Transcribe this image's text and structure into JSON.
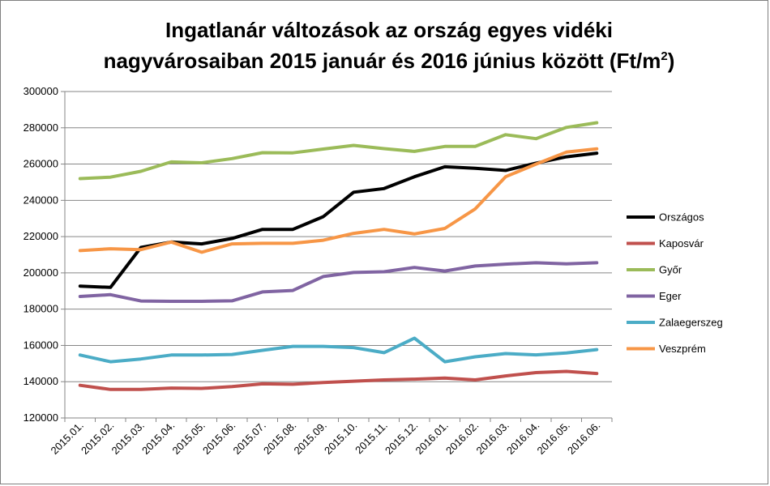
{
  "chart_data": {
    "type": "line",
    "title_line1": "Ingatlanár változások az ország egyes vidéki",
    "title_line2": "nagyvárosaiban 2015 január és 2016 június között (Ft/m",
    "title_sup": "2",
    "title_end": ")",
    "categories": [
      "2015.01.",
      "2015.02.",
      "2015.03.",
      "2015.04.",
      "2015.05.",
      "2015.06.",
      "2015.07.",
      "2015.08.",
      "2015.09.",
      "2015.10.",
      "2015.11.",
      "2015.12.",
      "2016.01.",
      "2016.02.",
      "2016.03.",
      "2016.04.",
      "2016.05.",
      "2016.06."
    ],
    "ylim": [
      120000,
      300000
    ],
    "yticks": [
      "120000",
      "140000",
      "160000",
      "180000",
      "200000",
      "220000",
      "240000",
      "260000",
      "280000",
      "300000"
    ],
    "ytick_values": [
      120000,
      140000,
      160000,
      180000,
      200000,
      220000,
      240000,
      260000,
      280000,
      300000
    ],
    "grid": true,
    "legend_position": "right",
    "series": [
      {
        "name": "Országos",
        "color": "#000000",
        "values": [
          192700,
          192000,
          214000,
          217000,
          216000,
          219000,
          224000,
          224000,
          231000,
          244500,
          246500,
          253000,
          258500,
          257700,
          256500,
          260500,
          264000,
          266000
        ]
      },
      {
        "name": "Kaposvár",
        "color": "#c0504d",
        "values": [
          138000,
          135700,
          135700,
          136500,
          136300,
          137300,
          138800,
          138600,
          139500,
          140300,
          141000,
          141400,
          142000,
          141000,
          143200,
          145000,
          145700,
          144500
        ]
      },
      {
        "name": "Győr",
        "color": "#9bbb59",
        "values": [
          252000,
          252800,
          256000,
          261200,
          260700,
          263000,
          266300,
          266200,
          268300,
          270300,
          268500,
          267000,
          269700,
          269700,
          276200,
          274000,
          280200,
          282800
        ]
      },
      {
        "name": "Eger",
        "color": "#8064a2",
        "values": [
          187000,
          188000,
          184500,
          184300,
          184300,
          184600,
          189500,
          190300,
          198000,
          200200,
          200600,
          203000,
          201000,
          203800,
          204800,
          205600,
          205000,
          205600
        ]
      },
      {
        "name": "Zalaegerszeg",
        "color": "#4bacc6",
        "values": [
          154700,
          151000,
          152500,
          154700,
          154700,
          155000,
          157300,
          159500,
          159500,
          158800,
          156000,
          164000,
          151000,
          153700,
          155500,
          154800,
          155800,
          157700
        ]
      },
      {
        "name": "Veszprém",
        "color": "#f79646",
        "values": [
          212300,
          213300,
          212800,
          217000,
          211400,
          216000,
          216300,
          216300,
          218000,
          221800,
          224000,
          221500,
          224500,
          235300,
          253000,
          260000,
          266600,
          268400
        ]
      }
    ]
  }
}
